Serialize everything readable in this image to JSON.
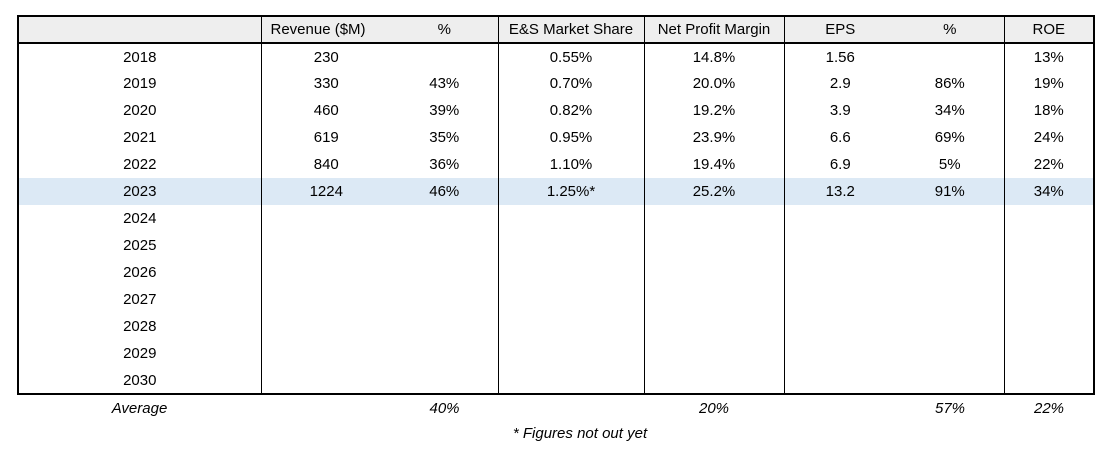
{
  "table": {
    "headers": [
      "",
      "Revenue ($M)",
      "%",
      "E&S Market Share",
      "Net Profit Margin",
      "EPS",
      "%",
      "ROE"
    ],
    "rows": [
      {
        "highlighted": false,
        "cells": [
          "2018",
          "230",
          "",
          "0.55%",
          "14.8%",
          "1.56",
          "",
          "13%"
        ]
      },
      {
        "highlighted": false,
        "cells": [
          "2019",
          "330",
          "43%",
          "0.70%",
          "20.0%",
          "2.9",
          "86%",
          "19%"
        ]
      },
      {
        "highlighted": false,
        "cells": [
          "2020",
          "460",
          "39%",
          "0.82%",
          "19.2%",
          "3.9",
          "34%",
          "18%"
        ]
      },
      {
        "highlighted": false,
        "cells": [
          "2021",
          "619",
          "35%",
          "0.95%",
          "23.9%",
          "6.6",
          "69%",
          "24%"
        ]
      },
      {
        "highlighted": false,
        "cells": [
          "2022",
          "840",
          "36%",
          "1.10%",
          "19.4%",
          "6.9",
          "5%",
          "22%"
        ]
      },
      {
        "highlighted": true,
        "cells": [
          "2023",
          "1224",
          "46%",
          "1.25%*",
          "25.2%",
          "13.2",
          "91%",
          "34%"
        ]
      },
      {
        "highlighted": false,
        "cells": [
          "2024",
          "",
          "",
          "",
          "",
          "",
          "",
          ""
        ]
      },
      {
        "highlighted": false,
        "cells": [
          "2025",
          "",
          "",
          "",
          "",
          "",
          "",
          ""
        ]
      },
      {
        "highlighted": false,
        "cells": [
          "2026",
          "",
          "",
          "",
          "",
          "",
          "",
          ""
        ]
      },
      {
        "highlighted": false,
        "cells": [
          "2027",
          "",
          "",
          "",
          "",
          "",
          "",
          ""
        ]
      },
      {
        "highlighted": false,
        "cells": [
          "2028",
          "",
          "",
          "",
          "",
          "",
          "",
          ""
        ]
      },
      {
        "highlighted": false,
        "cells": [
          "2029",
          "",
          "",
          "",
          "",
          "",
          "",
          ""
        ]
      },
      {
        "highlighted": false,
        "cells": [
          "2030",
          "",
          "",
          "",
          "",
          "",
          "",
          ""
        ]
      }
    ],
    "average": [
      "Average",
      "",
      "40%",
      "",
      "20%",
      "",
      "57%",
      "22%"
    ]
  },
  "footnote": "* Figures not out yet",
  "colors": {
    "header_bg": "#eeeeee",
    "highlight_bg": "#dce9f5",
    "border": "#000000"
  }
}
